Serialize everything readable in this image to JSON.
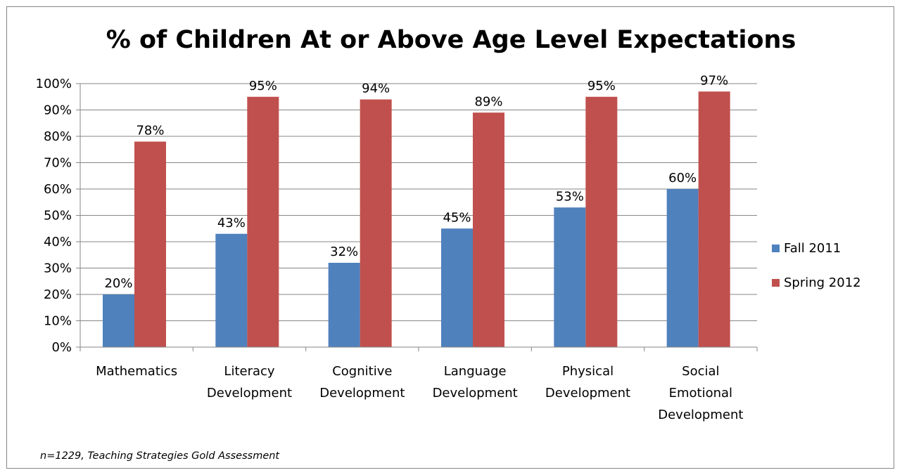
{
  "chart_data": {
    "type": "bar",
    "title": "% of Children At or Above Age Level Expectations",
    "categories": [
      [
        "Mathematics"
      ],
      [
        "Literacy",
        "Development"
      ],
      [
        "Cognitive",
        "Development"
      ],
      [
        "Language",
        "Development"
      ],
      [
        "Physical",
        "Development"
      ],
      [
        "Social",
        "Emotional",
        "Development"
      ]
    ],
    "series": [
      {
        "name": "Fall 2011",
        "color": "#4f81bd",
        "values": [
          20,
          43,
          32,
          45,
          53,
          60
        ],
        "labels": [
          "20%",
          "43%",
          "32%",
          "45%",
          "53%",
          "60%"
        ]
      },
      {
        "name": "Spring 2012",
        "color": "#c0504d",
        "values": [
          78,
          95,
          94,
          89,
          95,
          97
        ],
        "labels": [
          "78%",
          "95%",
          "94%",
          "89%",
          "95%",
          "97%"
        ]
      }
    ],
    "ylim": [
      0,
      100
    ],
    "yticks": [
      0,
      10,
      20,
      30,
      40,
      50,
      60,
      70,
      80,
      90,
      100
    ],
    "ytick_labels": [
      "0%",
      "10%",
      "20%",
      "30%",
      "40%",
      "50%",
      "60%",
      "70%",
      "80%",
      "90%",
      "100%"
    ],
    "xlabel": "",
    "ylabel": "",
    "grid": true,
    "legend": "right"
  },
  "footnote": "n=1229, Teaching Strategies Gold Assessment"
}
